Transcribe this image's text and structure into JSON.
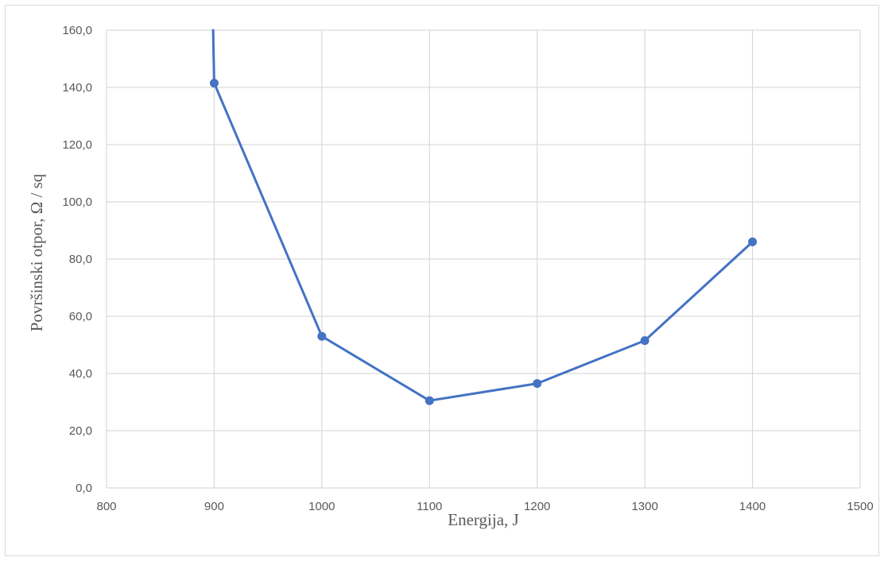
{
  "chart_data": {
    "type": "scatter",
    "mode": "lines+markers",
    "xlabel": "Energija, J",
    "ylabel": "Površinski otpor, Ω / sq",
    "xlim": [
      800,
      1500
    ],
    "ylim": [
      0,
      160
    ],
    "x_ticks": [
      800,
      900,
      1000,
      1100,
      1200,
      1300,
      1400,
      1500
    ],
    "x_tick_labels": [
      "800",
      "900",
      "1000",
      "1100",
      "1200",
      "1300",
      "1400",
      "1500"
    ],
    "y_ticks": [
      0,
      20,
      40,
      60,
      80,
      100,
      120,
      140,
      160
    ],
    "y_tick_labels": [
      "0,0",
      "20,0",
      "40,0",
      "60,0",
      "80,0",
      "100,0",
      "120,0",
      "140,0",
      "160,0"
    ],
    "grid": true,
    "legend": "none",
    "series": [
      {
        "color": "#4472c4",
        "points": [
          {
            "x": 900,
            "y": 141.5
          },
          {
            "x": 1000,
            "y": 53.0
          },
          {
            "x": 1100,
            "y": 30.5
          },
          {
            "x": 1200,
            "y": 36.5
          },
          {
            "x": 1300,
            "y": 51.5
          },
          {
            "x": 1400,
            "y": 86.0
          }
        ],
        "offscale_lead_in": {
          "x": 899,
          "y": 160
        }
      }
    ],
    "colors": {
      "line": "#4472c4",
      "grid": "#d9d9d9",
      "text": "#595959"
    }
  }
}
